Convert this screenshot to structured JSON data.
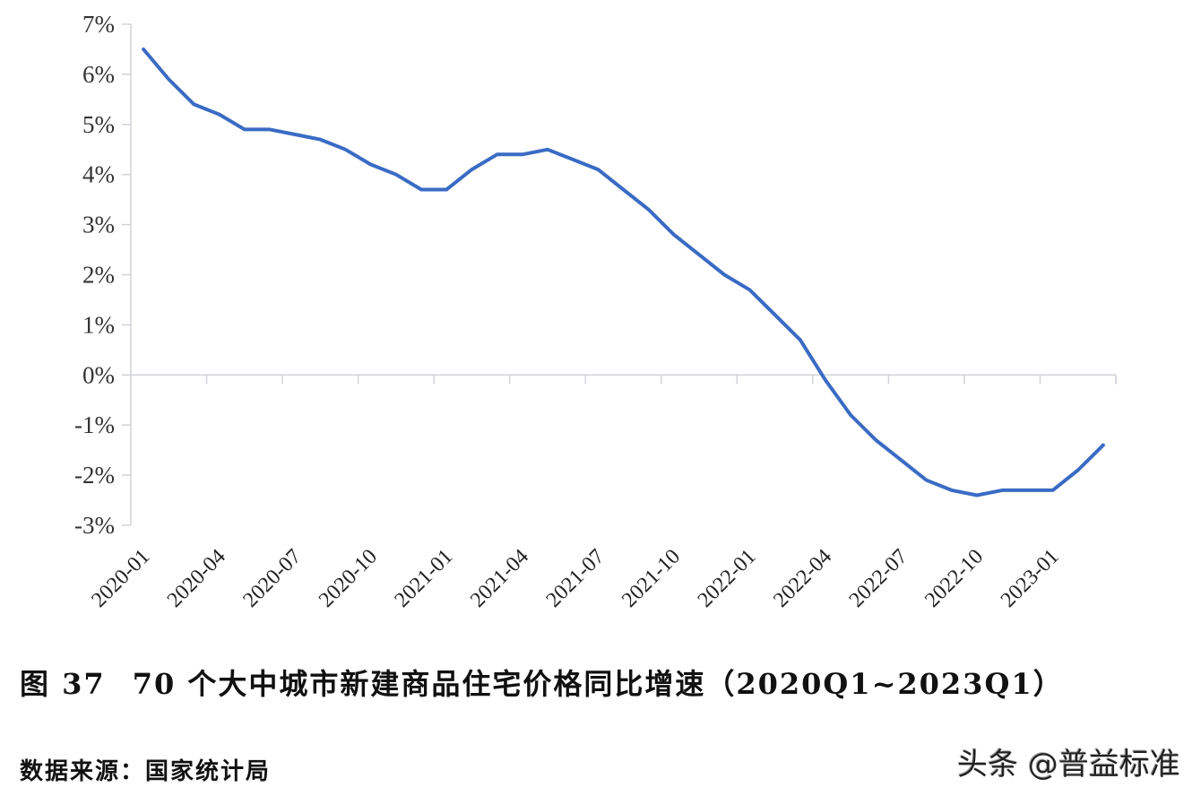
{
  "chart_data": {
    "type": "line",
    "title": "图 37  70个大中城市新建商品住宅价格同比增速（2020Q1~2023Q1）",
    "xlabel": "",
    "ylabel": "",
    "ylim": [
      -3,
      7
    ],
    "grid": false,
    "legend": null,
    "y_ticks": [
      "7%",
      "6%",
      "5%",
      "4%",
      "3%",
      "2%",
      "1%",
      "0%",
      "-1%",
      "-2%",
      "-3%"
    ],
    "x_tick_labels": [
      "2020-01",
      "2020-04",
      "2020-07",
      "2020-10",
      "2021-01",
      "2021-04",
      "2021-07",
      "2021-10",
      "2022-01",
      "2022-04",
      "2022-07",
      "2022-10",
      "2023-01"
    ],
    "x": [
      "2020-01",
      "2020-02",
      "2020-03",
      "2020-04",
      "2020-05",
      "2020-06",
      "2020-07",
      "2020-08",
      "2020-09",
      "2020-10",
      "2020-11",
      "2020-12",
      "2021-01",
      "2021-02",
      "2021-03",
      "2021-04",
      "2021-05",
      "2021-06",
      "2021-07",
      "2021-08",
      "2021-09",
      "2021-10",
      "2021-11",
      "2021-12",
      "2022-01",
      "2022-02",
      "2022-03",
      "2022-04",
      "2022-05",
      "2022-06",
      "2022-07",
      "2022-08",
      "2022-09",
      "2022-10",
      "2022-11",
      "2022-12",
      "2023-01",
      "2023-02",
      "2023-03"
    ],
    "series": [
      {
        "name": "70个大中城市新建商品住宅价格同比增速",
        "unit": "%",
        "color": "#3a6bc4",
        "values": [
          6.5,
          5.9,
          5.4,
          5.2,
          4.9,
          4.9,
          4.8,
          4.7,
          4.5,
          4.2,
          4.0,
          3.7,
          3.7,
          4.1,
          4.4,
          4.4,
          4.5,
          4.3,
          4.1,
          3.7,
          3.3,
          2.8,
          2.4,
          2.0,
          1.7,
          1.2,
          0.7,
          -0.1,
          -0.8,
          -1.3,
          -1.7,
          -2.1,
          -2.3,
          -2.4,
          -2.3,
          -2.3,
          -2.3,
          -1.9,
          -1.4
        ]
      }
    ]
  },
  "caption": {
    "figure_number": "图 37",
    "text": "70 个大中城市新建商品住宅价格同比增速（2020Q1~2023Q1）"
  },
  "source": {
    "text": "数据来源：国家统计局"
  },
  "watermark": {
    "text": "头条 @普益标准"
  },
  "colors": {
    "line": "#3a6bc4",
    "axis": "#d0d3d8",
    "text": "#222222"
  }
}
